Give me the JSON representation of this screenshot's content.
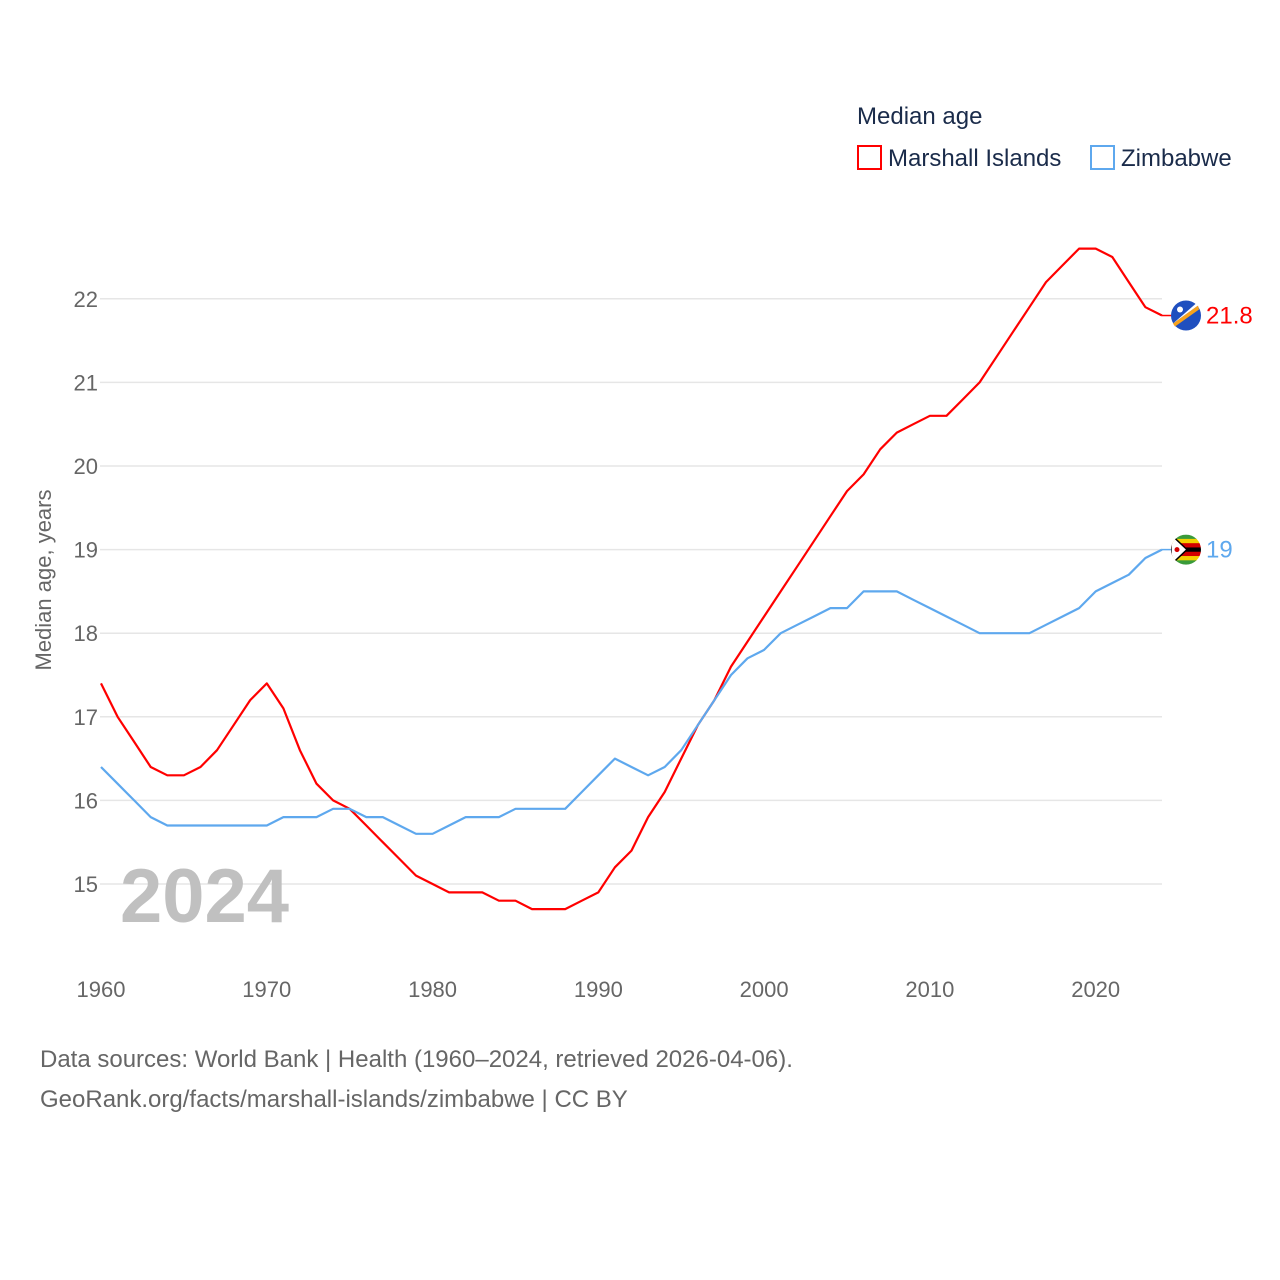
{
  "chart_data": {
    "type": "line",
    "title": "Median age",
    "ylabel": "Median age, years",
    "xlabel": "",
    "year_watermark": "2024",
    "ylim": [
      14.3,
      23.0
    ],
    "xlim": [
      1960,
      2024
    ],
    "yticks": [
      15,
      16,
      17,
      18,
      19,
      20,
      21,
      22
    ],
    "xticks": [
      1960,
      1970,
      1980,
      1990,
      2000,
      2010,
      2020
    ],
    "grid": true,
    "legend_placement": "top-right",
    "x": [
      1960,
      1961,
      1962,
      1963,
      1964,
      1965,
      1966,
      1967,
      1968,
      1969,
      1970,
      1971,
      1972,
      1973,
      1974,
      1975,
      1976,
      1977,
      1978,
      1979,
      1980,
      1981,
      1982,
      1983,
      1984,
      1985,
      1986,
      1987,
      1988,
      1989,
      1990,
      1991,
      1992,
      1993,
      1994,
      1995,
      1996,
      1997,
      1998,
      1999,
      2000,
      2001,
      2002,
      2003,
      2004,
      2005,
      2006,
      2007,
      2008,
      2009,
      2010,
      2011,
      2012,
      2013,
      2014,
      2015,
      2016,
      2017,
      2018,
      2019,
      2020,
      2021,
      2022,
      2023,
      2024
    ],
    "series": [
      {
        "name": "Marshall Islands",
        "color": "#ff0000",
        "end_label": "21.8",
        "values": [
          17.4,
          17.0,
          16.7,
          16.4,
          16.3,
          16.3,
          16.4,
          16.6,
          16.9,
          17.2,
          17.4,
          17.1,
          16.6,
          16.2,
          16.0,
          15.9,
          15.7,
          15.5,
          15.3,
          15.1,
          15.0,
          14.9,
          14.9,
          14.9,
          14.8,
          14.8,
          14.7,
          14.7,
          14.7,
          14.8,
          14.9,
          15.2,
          15.4,
          15.8,
          16.1,
          16.5,
          16.9,
          17.2,
          17.6,
          17.9,
          18.2,
          18.5,
          18.8,
          19.1,
          19.4,
          19.7,
          19.9,
          20.2,
          20.4,
          20.5,
          20.6,
          20.6,
          20.8,
          21.0,
          21.3,
          21.6,
          21.9,
          22.2,
          22.4,
          22.6,
          22.6,
          22.5,
          22.2,
          21.9,
          21.8
        ]
      },
      {
        "name": "Zimbabwe",
        "color": "#5ea8ee",
        "end_label": "19",
        "values": [
          16.4,
          16.2,
          16.0,
          15.8,
          15.7,
          15.7,
          15.7,
          15.7,
          15.7,
          15.7,
          15.7,
          15.8,
          15.8,
          15.8,
          15.9,
          15.9,
          15.8,
          15.8,
          15.7,
          15.6,
          15.6,
          15.7,
          15.8,
          15.8,
          15.8,
          15.9,
          15.9,
          15.9,
          15.9,
          16.1,
          16.3,
          16.5,
          16.4,
          16.3,
          16.4,
          16.6,
          16.9,
          17.2,
          17.5,
          17.7,
          17.8,
          18.0,
          18.1,
          18.2,
          18.3,
          18.3,
          18.5,
          18.5,
          18.5,
          18.4,
          18.3,
          18.2,
          18.1,
          18.0,
          18.0,
          18.0,
          18.0,
          18.1,
          18.2,
          18.3,
          18.5,
          18.6,
          18.7,
          18.9,
          19.0
        ]
      }
    ]
  },
  "footer": {
    "line1": "Data sources: World Bank | Health (1960–2024, retrieved 2026-04-06).",
    "line2": "GeoRank.org/facts/marshall-islands/zimbabwe | CC BY"
  }
}
